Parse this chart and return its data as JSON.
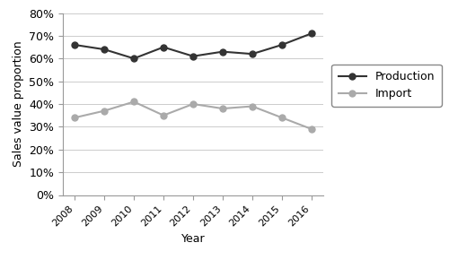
{
  "years": [
    2008,
    2009,
    2010,
    2011,
    2012,
    2013,
    2014,
    2015,
    2016
  ],
  "production": [
    0.66,
    0.64,
    0.6,
    0.65,
    0.61,
    0.63,
    0.62,
    0.66,
    0.71
  ],
  "import_": [
    0.34,
    0.37,
    0.41,
    0.35,
    0.4,
    0.38,
    0.39,
    0.34,
    0.29
  ],
  "production_color": "#333333",
  "import_color": "#aaaaaa",
  "xlabel": "Year",
  "ylabel": "Sales value proportion",
  "ylim": [
    0.0,
    0.8
  ],
  "yticks": [
    0.0,
    0.1,
    0.2,
    0.3,
    0.4,
    0.5,
    0.6,
    0.7,
    0.8
  ],
  "legend_production": "Production",
  "legend_import": "Import",
  "marker": "o",
  "linewidth": 1.5,
  "markersize": 5,
  "figsize": [
    5.0,
    2.9
  ],
  "dpi": 100
}
